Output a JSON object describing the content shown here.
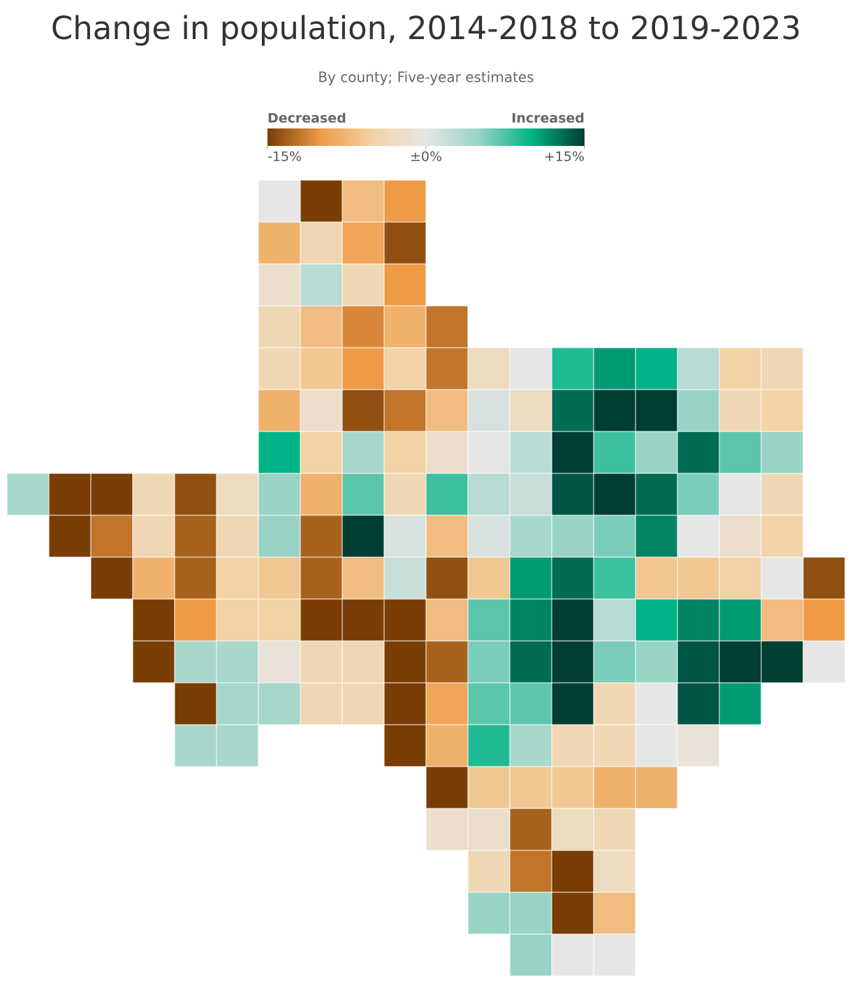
{
  "title": "Change in population, 2014-2018 to 2019-2023",
  "subtitle": "By county; Five-year estimates",
  "legend": {
    "left_title": "Decreased",
    "right_title": "Increased",
    "range": [
      -15,
      15
    ],
    "colors": [
      "#7a3d04",
      "#ef9a45",
      "#f2d3a6",
      "#e6e6e6",
      "#99d3c6",
      "#00b386",
      "#003d33"
    ],
    "ticks": [
      {
        "value": -15,
        "label": "-15%"
      },
      {
        "value": 0,
        "label": "±0%"
      },
      {
        "value": 15,
        "label": "+15%"
      }
    ]
  },
  "map": {
    "rows": [
      [
        0,
        -15,
        -7,
        -10
      ],
      [
        -8,
        -4,
        -9,
        -14
      ],
      [
        -2,
        3,
        -4,
        -10
      ],
      [
        -4,
        -7,
        -11,
        -8,
        -12
      ],
      [
        -4,
        -6,
        -10,
        -5,
        -12,
        -3,
        0,
        9,
        11,
        10,
        3,
        -5,
        -4
      ],
      [
        -8,
        -2,
        -14,
        -12,
        -7,
        1,
        -3,
        13,
        15,
        15,
        5,
        -4,
        -5
      ],
      [
        10,
        -5,
        4,
        -5,
        -2,
        0,
        3,
        15,
        8,
        5,
        13,
        7,
        5
      ],
      [
        4,
        -15,
        -15,
        -4,
        -14,
        -3,
        5,
        -8,
        7,
        -4,
        8,
        3,
        2,
        14,
        15,
        13,
        6,
        0,
        -4
      ],
      [
        -15,
        -12,
        -4,
        -13,
        -4,
        5,
        -13,
        15,
        1,
        -7,
        1,
        4,
        5,
        6,
        12,
        0,
        -2,
        -5
      ],
      [
        -15,
        -8,
        -13,
        -5,
        -6,
        -13,
        -7,
        2,
        -14,
        -6,
        11,
        13,
        8,
        -6,
        -6,
        -5,
        0,
        -14
      ],
      [
        -15,
        -10,
        -5,
        -5,
        -15,
        -15,
        -15,
        -7,
        7,
        12,
        15,
        3,
        10,
        12,
        11,
        -7,
        -10
      ],
      [
        -15,
        4,
        4,
        -1,
        -4,
        -4,
        -15,
        -13,
        6,
        13,
        15,
        6,
        5,
        14,
        15,
        15,
        0
      ],
      [
        -15,
        4,
        4,
        -4,
        -4,
        -15,
        -9,
        7,
        7,
        15,
        -4,
        0,
        14,
        11
      ],
      [
        4,
        4,
        -15,
        -8,
        9,
        4,
        -4,
        -4,
        0,
        -1
      ],
      [
        -15,
        -6,
        -6,
        -6,
        -8,
        -8
      ],
      [
        -2,
        -2,
        -13,
        -3,
        -4
      ],
      [
        -4,
        -12,
        -15,
        -3
      ],
      [
        5,
        5,
        -15,
        -7
      ],
      [
        5,
        0,
        0
      ]
    ]
  }
}
